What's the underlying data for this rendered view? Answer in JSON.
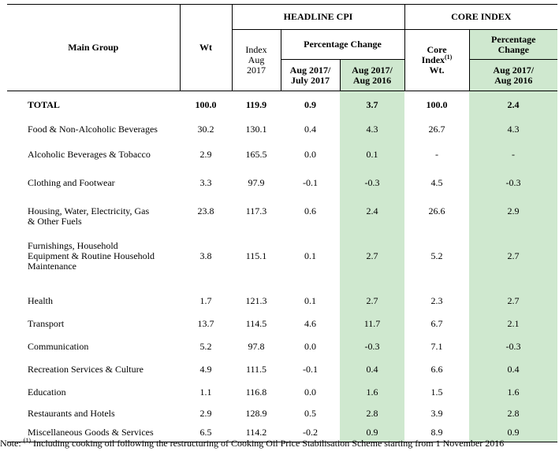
{
  "header": {
    "main_group": "Main Group",
    "wt": "Wt",
    "headline_cpi": "HEADLINE CPI",
    "core_index": "CORE INDEX",
    "index_aug_2017_l1": "Index",
    "index_aug_2017_l2": "Aug",
    "index_aug_2017_l3": "2017",
    "percentage_change": "Percentage Change",
    "pc_aug_jul_l1": "Aug 2017/",
    "pc_aug_jul_l2": "July 2017",
    "pc_aug_aug_l1": "Aug 2017/",
    "pc_aug_aug_l2": "Aug 2016",
    "core_index_wt_l1": "Core",
    "core_index_wt_l2": "Index",
    "core_index_wt_sup": "(1)",
    "core_index_wt_l3": "Wt.",
    "core_pc_l1": "Percentage",
    "core_pc_l2": "Change",
    "core_pc_l3": "Aug 2017/",
    "core_pc_l4": "Aug 2016"
  },
  "rows": [
    {
      "group": "TOTAL",
      "wt": "100.0",
      "index": "119.9",
      "m": "0.9",
      "y": "3.7",
      "core_wt": "100.0",
      "core_y": "2.4",
      "bold": true
    },
    {
      "group": "Food & Non-Alcoholic Beverages",
      "wt": "30.2",
      "index": "130.1",
      "m": "0.4",
      "y": "4.3",
      "core_wt": "26.7",
      "core_y": "4.3"
    },
    {
      "group": "Alcoholic Beverages & Tobacco",
      "wt": "2.9",
      "index": "165.5",
      "m": "0.0",
      "y": "0.1",
      "core_wt": "-",
      "core_y": "-"
    },
    {
      "group": "Clothing and Footwear",
      "wt": "3.3",
      "index": "97.9",
      "m": "-0.1",
      "y": "-0.3",
      "core_wt": "4.5",
      "core_y": "-0.3"
    },
    {
      "group_l1": "Housing, Water, Electricity, Gas",
      "group_l2": "& Other Fuels",
      "wt": "23.8",
      "index": "117.3",
      "m": "0.6",
      "y": "2.4",
      "core_wt": "26.6",
      "core_y": "2.9"
    },
    {
      "group_l1": "Furnishings, Household",
      "group_l2": "Equipment & Routine Household",
      "group_l3": "Maintenance",
      "wt": "3.8",
      "index": "115.1",
      "m": "0.1",
      "y": "2.7",
      "core_wt": "5.2",
      "core_y": "2.7"
    },
    {
      "group": "Health",
      "wt": "1.7",
      "index": "121.3",
      "m": "0.1",
      "y": "2.7",
      "core_wt": "2.3",
      "core_y": "2.7"
    },
    {
      "group": "Transport",
      "wt": "13.7",
      "index": "114.5",
      "m": "4.6",
      "y": "11.7",
      "core_wt": "6.7",
      "core_y": "2.1"
    },
    {
      "group": "Communication",
      "wt": "5.2",
      "index": "97.8",
      "m": "0.0",
      "y": "-0.3",
      "core_wt": "7.1",
      "core_y": "-0.3"
    },
    {
      "group": "Recreation Services & Culture",
      "wt": "4.9",
      "index": "111.5",
      "m": "-0.1",
      "y": "0.4",
      "core_wt": "6.6",
      "core_y": "0.4"
    },
    {
      "group": "Education",
      "wt": "1.1",
      "index": "116.8",
      "m": "0.0",
      "y": "1.6",
      "core_wt": "1.5",
      "core_y": "1.6"
    },
    {
      "group": "Restaurants and Hotels",
      "wt": "2.9",
      "index": "128.9",
      "m": "0.5",
      "y": "2.8",
      "core_wt": "3.9",
      "core_y": "2.8"
    },
    {
      "group": "Miscellaneous Goods & Services",
      "wt": "6.5",
      "index": "114.2",
      "m": "-0.2",
      "y": "0.9",
      "core_wt": "8.9",
      "core_y": "0.9"
    }
  ],
  "note": {
    "prefix": "Note: ",
    "sup": "(1)",
    "text": " Including cooking oil following the restructuring of Cooking Oil Price Stabilisation Scheme starting from 1 November 2016"
  },
  "colors": {
    "shade": "#cfe8cf",
    "border": "#000000"
  }
}
